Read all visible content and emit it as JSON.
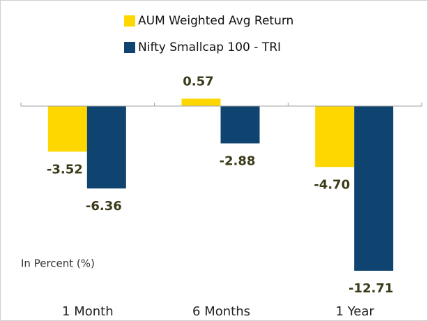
{
  "chart_data": {
    "type": "bar",
    "categories": [
      "1 Month",
      "6 Months",
      "1 Year"
    ],
    "series": [
      {
        "name": "AUM Weighted  Avg Return",
        "color": "#ffd700",
        "values": [
          -3.52,
          0.57,
          -4.7
        ],
        "value_labels": [
          "-3.52",
          "0.57",
          "-4.70"
        ]
      },
      {
        "name": "Nifty Smallcap 100 - TRI",
        "color": "#0f4470",
        "values": [
          -6.36,
          -2.88,
          -12.71
        ],
        "value_labels": [
          "-6.36",
          "-2.88",
          "-12.71"
        ]
      }
    ],
    "annotation": "In Percent (%)",
    "ylim": [
      -14,
      1
    ]
  }
}
